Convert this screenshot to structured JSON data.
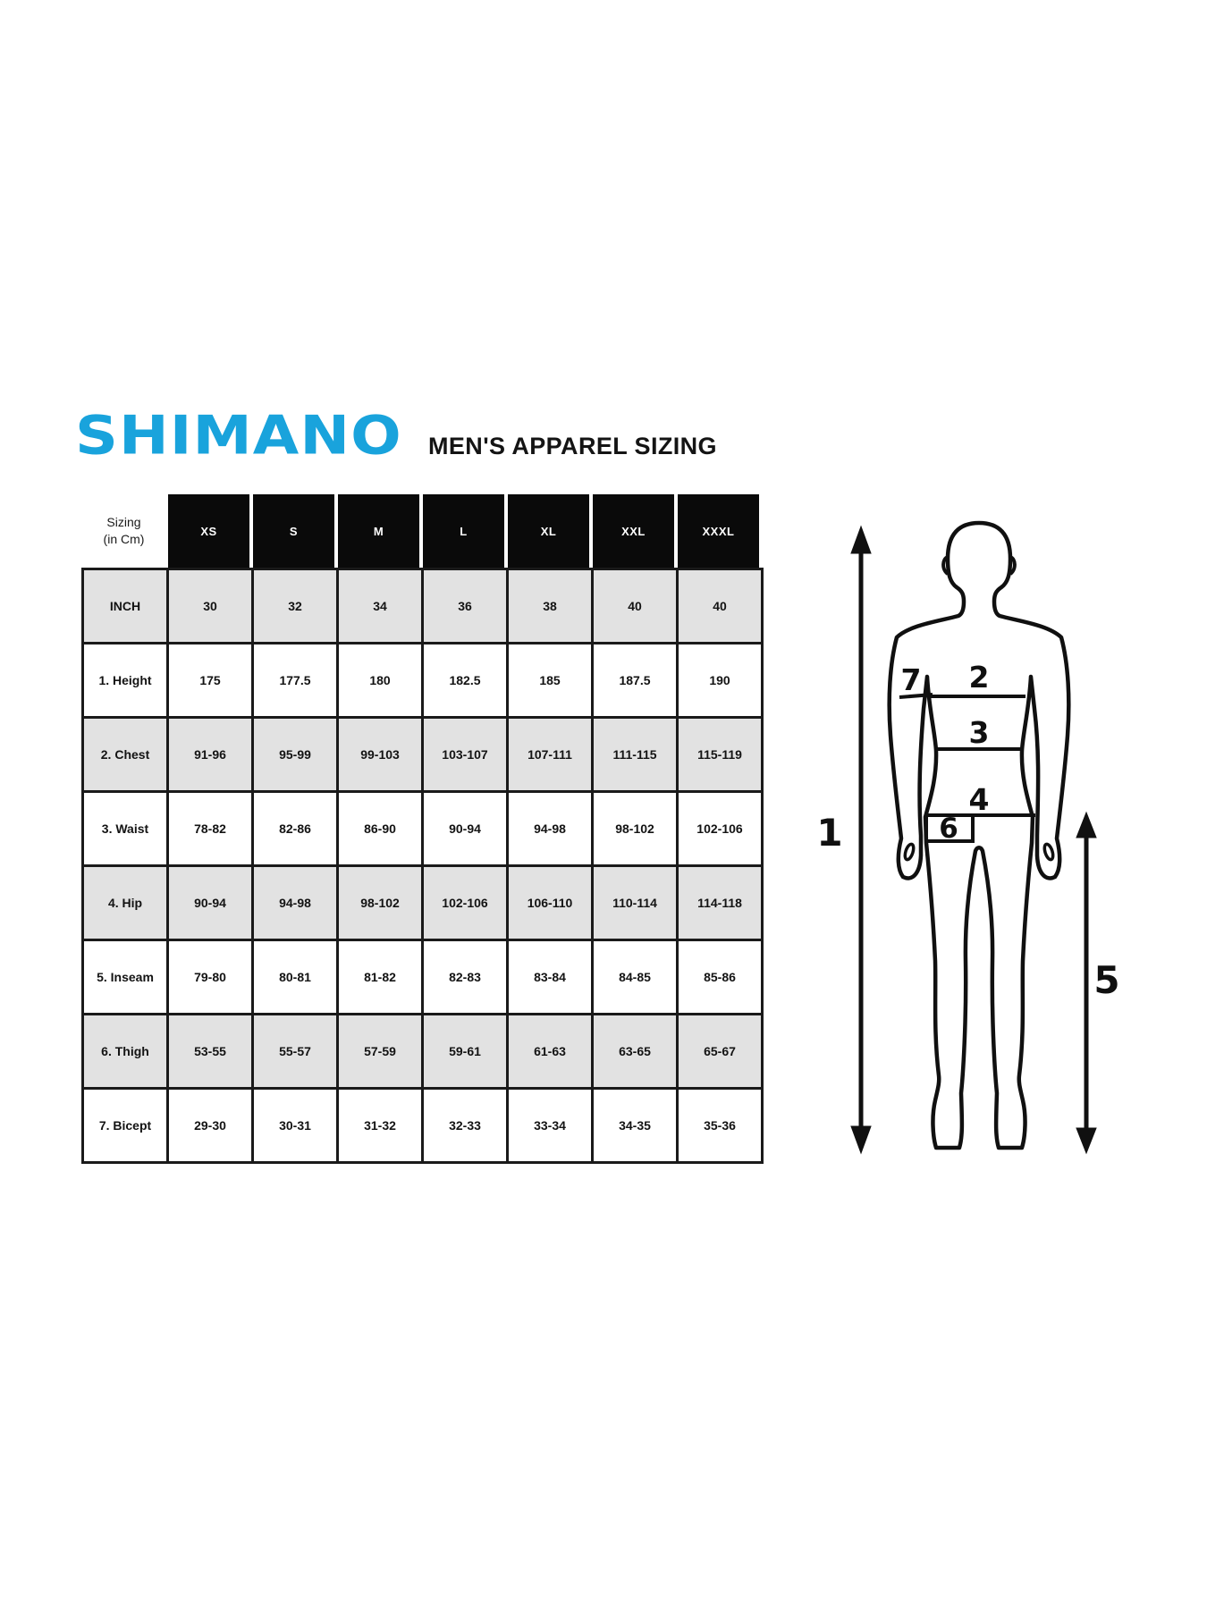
{
  "header": {
    "logo_text": "SHIMANO",
    "logo_color": "#19a3dc",
    "title": "MEN'S APPAREL SIZING"
  },
  "table": {
    "corner_line1": "Sizing",
    "corner_line2": "(in Cm)",
    "size_headers": [
      "XS",
      "S",
      "M",
      "L",
      "XL",
      "XXL",
      "XXXL"
    ],
    "rows": [
      {
        "label": "INCH",
        "shaded": true,
        "values": [
          "30",
          "32",
          "34",
          "36",
          "38",
          "40",
          "40"
        ]
      },
      {
        "label": "1. Height",
        "shaded": false,
        "values": [
          "175",
          "177.5",
          "180",
          "182.5",
          "185",
          "187.5",
          "190"
        ]
      },
      {
        "label": "2. Chest",
        "shaded": true,
        "values": [
          "91-96",
          "95-99",
          "99-103",
          "103-107",
          "107-111",
          "111-115",
          "115-119"
        ]
      },
      {
        "label": "3. Waist",
        "shaded": false,
        "values": [
          "78-82",
          "82-86",
          "86-90",
          "90-94",
          "94-98",
          "98-102",
          "102-106"
        ]
      },
      {
        "label": "4. Hip",
        "shaded": true,
        "values": [
          "90-94",
          "94-98",
          "98-102",
          "102-106",
          "106-110",
          "110-114",
          "114-118"
        ]
      },
      {
        "label": "5. Inseam",
        "shaded": false,
        "values": [
          "79-80",
          "80-81",
          "81-82",
          "82-83",
          "83-84",
          "84-85",
          "85-86"
        ]
      },
      {
        "label": "6. Thigh",
        "shaded": true,
        "values": [
          "53-55",
          "55-57",
          "57-59",
          "59-61",
          "61-63",
          "63-65",
          "65-67"
        ]
      },
      {
        "label": "7. Bicept",
        "shaded": false,
        "values": [
          "29-30",
          "30-31",
          "31-32",
          "32-33",
          "33-34",
          "34-35",
          "35-36"
        ]
      }
    ],
    "colors": {
      "header_bg": "#0a0a0a",
      "header_text": "#ffffff",
      "shaded_row": "#e2e2e2",
      "border": "#1a1a1a"
    }
  },
  "figure": {
    "labels": {
      "height": "1",
      "chest": "2",
      "waist": "3",
      "hip": "4",
      "inseam": "5",
      "thigh": "6",
      "bicep": "7"
    }
  }
}
